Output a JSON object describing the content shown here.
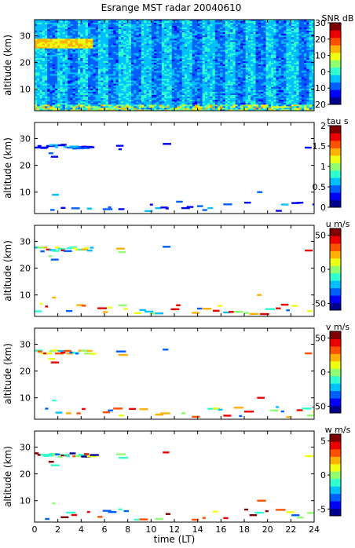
{
  "figure": {
    "title": "Esrange MST radar 20040610"
  },
  "colormap": [
    "#00008f",
    "#0000ff",
    "#0060ff",
    "#00c0ff",
    "#30ffcf",
    "#8fff70",
    "#efff10",
    "#ffb000",
    "#ff5000",
    "#ef0000",
    "#800000"
  ],
  "chart_data": [
    {
      "type": "heatmap",
      "name": "SNR",
      "ylabel": "altitude (km)",
      "colorbar_label": "SNR dB",
      "clim": [
        -20,
        30
      ],
      "colorbar_ticks": [
        30,
        20,
        10,
        0,
        -10,
        -20
      ],
      "xlim": [
        0,
        24
      ],
      "ylim": [
        2,
        36
      ],
      "yticks": [
        10,
        20,
        30
      ]
    },
    {
      "type": "heatmap",
      "name": "tau",
      "ylabel": "altitude (km)",
      "colorbar_label": "tau s",
      "clim": [
        0,
        2
      ],
      "colorbar_ticks": [
        2,
        1.5,
        1,
        0.5,
        0
      ],
      "xlim": [
        0,
        24
      ],
      "ylim": [
        2,
        36
      ],
      "yticks": [
        10,
        20,
        30
      ]
    },
    {
      "type": "heatmap",
      "name": "u",
      "ylabel": "altitude (km)",
      "colorbar_label": "u m/s",
      "clim": [
        -60,
        60
      ],
      "colorbar_ticks": [
        50,
        0,
        -50
      ],
      "xlim": [
        0,
        24
      ],
      "ylim": [
        2,
        36
      ],
      "yticks": [
        10,
        20,
        30
      ]
    },
    {
      "type": "heatmap",
      "name": "v",
      "ylabel": "altitude (km)",
      "colorbar_label": "v m/s",
      "clim": [
        -60,
        60
      ],
      "colorbar_ticks": [
        50,
        0,
        -50
      ],
      "xlim": [
        0,
        24
      ],
      "ylim": [
        2,
        36
      ],
      "yticks": [
        10,
        20,
        30
      ]
    },
    {
      "type": "heatmap",
      "name": "w",
      "ylabel": "altitude (km)",
      "xlabel": "time (LT)",
      "colorbar_label": "w m/s",
      "clim": [
        -6,
        6
      ],
      "colorbar_ticks": [
        5,
        0,
        -5
      ],
      "xlim": [
        0,
        24
      ],
      "ylim": [
        2,
        36
      ],
      "yticks": [
        10,
        20,
        30
      ],
      "xticks": [
        0,
        2,
        4,
        6,
        8,
        10,
        12,
        14,
        16,
        18,
        20,
        22,
        24
      ]
    }
  ]
}
